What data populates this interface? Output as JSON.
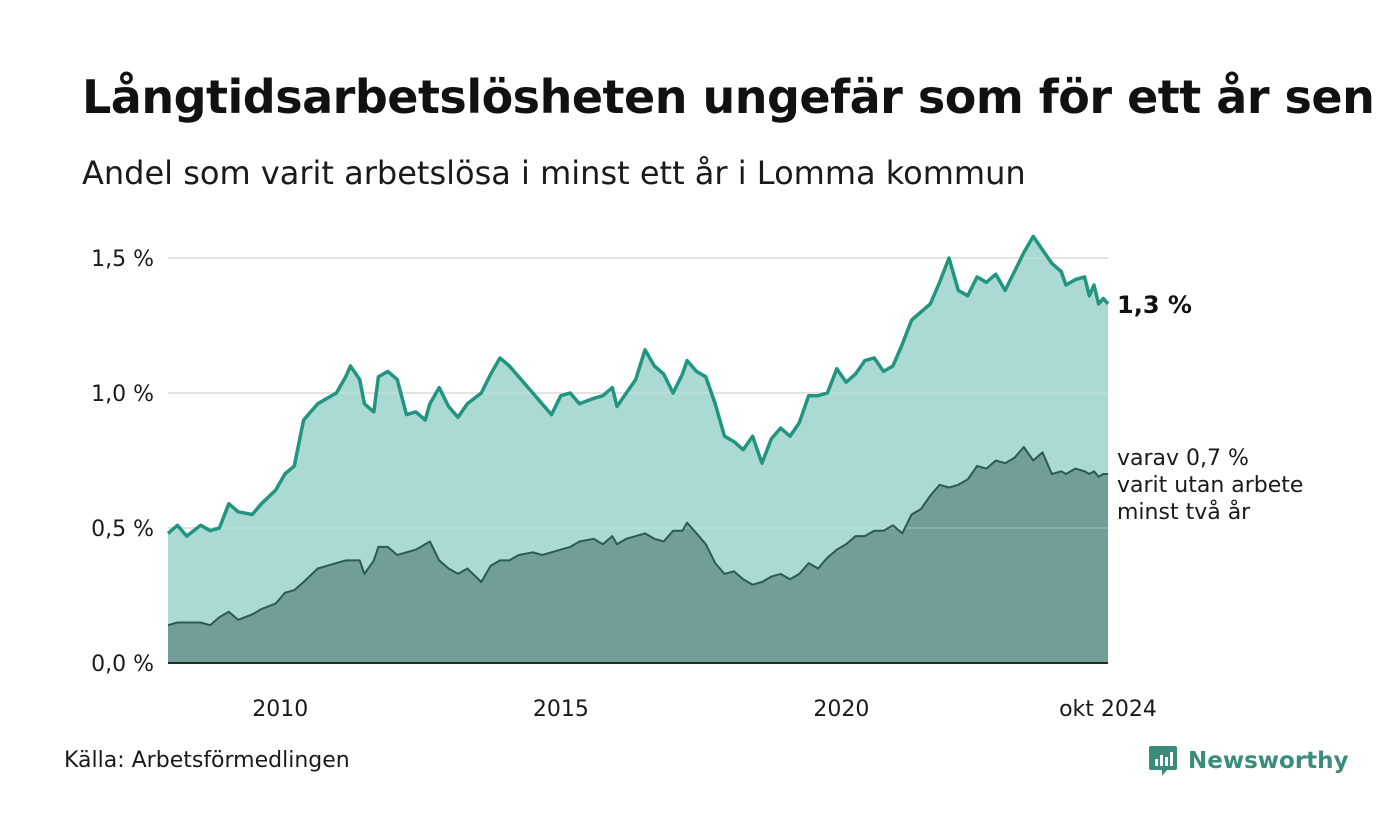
{
  "title": "Långtidsarbetslösheten ungefär som för ett år sen",
  "subtitle": "Andel som varit arbetslösa i minst ett år i Lomma kommun",
  "source": "Källa: Arbetsförmedlingen",
  "brand": {
    "name": "Newsworthy",
    "icon": "newsworthy-logo-icon"
  },
  "colors": {
    "total_line": "#21957f",
    "total_area": "#a4d6cf",
    "long_line": "#2b5c54",
    "long_area": "#719e97",
    "grid": "#dddddd",
    "brand": "#3b8c7c"
  },
  "chart_data": {
    "type": "area",
    "title": "Långtidsarbetslösheten ungefär som för ett år sen",
    "subtitle": "Andel som varit arbetslösa i minst ett år i Lomma kommun",
    "ylim": [
      0,
      1.6
    ],
    "xlim": [
      "2008-01",
      "2024-10"
    ],
    "grid": true,
    "y_ticks": [
      {
        "value": 0.0,
        "label": "0,0 %"
      },
      {
        "value": 0.5,
        "label": "0,5 %"
      },
      {
        "value": 1.0,
        "label": "1,0 %"
      },
      {
        "value": 1.5,
        "label": "1,5 %"
      }
    ],
    "x_ticks": [
      {
        "date": "2010-01",
        "label": "2010"
      },
      {
        "date": "2015-01",
        "label": "2015"
      },
      {
        "date": "2020-01",
        "label": "2020"
      },
      {
        "date": "2024-10",
        "label": "okt 2024"
      }
    ],
    "annotations": {
      "total_label": "1,3 %",
      "long_label_lines": [
        "varav 0,7 %",
        "varit utan arbete",
        "minst två år"
      ]
    },
    "series": [
      {
        "key": "total",
        "points": [
          [
            "2008-01",
            0.48
          ],
          [
            "2008-03",
            0.51
          ],
          [
            "2008-05",
            0.47
          ],
          [
            "2008-08",
            0.51
          ],
          [
            "2008-10",
            0.49
          ],
          [
            "2008-12",
            0.5
          ],
          [
            "2009-02",
            0.59
          ],
          [
            "2009-04",
            0.56
          ],
          [
            "2009-07",
            0.55
          ],
          [
            "2009-09",
            0.59
          ],
          [
            "2009-12",
            0.64
          ],
          [
            "2010-02",
            0.7
          ],
          [
            "2010-04",
            0.73
          ],
          [
            "2010-06",
            0.9
          ],
          [
            "2010-09",
            0.96
          ],
          [
            "2010-11",
            0.98
          ],
          [
            "2011-01",
            1.0
          ],
          [
            "2011-03",
            1.06
          ],
          [
            "2011-04",
            1.1
          ],
          [
            "2011-06",
            1.05
          ],
          [
            "2011-07",
            0.96
          ],
          [
            "2011-09",
            0.93
          ],
          [
            "2011-10",
            1.06
          ],
          [
            "2011-12",
            1.08
          ],
          [
            "2012-02",
            1.05
          ],
          [
            "2012-04",
            0.92
          ],
          [
            "2012-06",
            0.93
          ],
          [
            "2012-08",
            0.9
          ],
          [
            "2012-09",
            0.96
          ],
          [
            "2012-11",
            1.02
          ],
          [
            "2013-01",
            0.95
          ],
          [
            "2013-03",
            0.91
          ],
          [
            "2013-05",
            0.96
          ],
          [
            "2013-08",
            1.0
          ],
          [
            "2013-10",
            1.07
          ],
          [
            "2013-12",
            1.13
          ],
          [
            "2014-02",
            1.1
          ],
          [
            "2014-04",
            1.06
          ],
          [
            "2014-07",
            1.0
          ],
          [
            "2014-09",
            0.96
          ],
          [
            "2014-11",
            0.92
          ],
          [
            "2015-01",
            0.99
          ],
          [
            "2015-03",
            1.0
          ],
          [
            "2015-05",
            0.96
          ],
          [
            "2015-08",
            0.98
          ],
          [
            "2015-10",
            0.99
          ],
          [
            "2015-12",
            1.02
          ],
          [
            "2016-01",
            0.95
          ],
          [
            "2016-03",
            1.0
          ],
          [
            "2016-05",
            1.05
          ],
          [
            "2016-07",
            1.16
          ],
          [
            "2016-09",
            1.1
          ],
          [
            "2016-11",
            1.07
          ],
          [
            "2017-01",
            1.0
          ],
          [
            "2017-03",
            1.07
          ],
          [
            "2017-04",
            1.12
          ],
          [
            "2017-06",
            1.08
          ],
          [
            "2017-08",
            1.06
          ],
          [
            "2017-10",
            0.96
          ],
          [
            "2017-12",
            0.84
          ],
          [
            "2018-02",
            0.82
          ],
          [
            "2018-04",
            0.79
          ],
          [
            "2018-06",
            0.84
          ],
          [
            "2018-08",
            0.74
          ],
          [
            "2018-10",
            0.83
          ],
          [
            "2018-12",
            0.87
          ],
          [
            "2019-02",
            0.84
          ],
          [
            "2019-04",
            0.89
          ],
          [
            "2019-06",
            0.99
          ],
          [
            "2019-08",
            0.99
          ],
          [
            "2019-10",
            1.0
          ],
          [
            "2019-12",
            1.09
          ],
          [
            "2020-02",
            1.04
          ],
          [
            "2020-04",
            1.07
          ],
          [
            "2020-06",
            1.12
          ],
          [
            "2020-08",
            1.13
          ],
          [
            "2020-10",
            1.08
          ],
          [
            "2020-12",
            1.1
          ],
          [
            "2021-02",
            1.18
          ],
          [
            "2021-04",
            1.27
          ],
          [
            "2021-06",
            1.3
          ],
          [
            "2021-08",
            1.33
          ],
          [
            "2021-10",
            1.41
          ],
          [
            "2021-12",
            1.5
          ],
          [
            "2022-02",
            1.38
          ],
          [
            "2022-04",
            1.36
          ],
          [
            "2022-06",
            1.43
          ],
          [
            "2022-08",
            1.41
          ],
          [
            "2022-10",
            1.44
          ],
          [
            "2022-12",
            1.38
          ],
          [
            "2023-02",
            1.45
          ],
          [
            "2023-04",
            1.52
          ],
          [
            "2023-06",
            1.58
          ],
          [
            "2023-08",
            1.53
          ],
          [
            "2023-10",
            1.48
          ],
          [
            "2023-12",
            1.45
          ],
          [
            "2024-01",
            1.4
          ],
          [
            "2024-03",
            1.42
          ],
          [
            "2024-05",
            1.43
          ],
          [
            "2024-06",
            1.36
          ],
          [
            "2024-07",
            1.4
          ],
          [
            "2024-08",
            1.33
          ],
          [
            "2024-09",
            1.35
          ],
          [
            "2024-10",
            1.33
          ]
        ]
      },
      {
        "key": "long",
        "points": [
          [
            "2008-01",
            0.14
          ],
          [
            "2008-03",
            0.15
          ],
          [
            "2008-05",
            0.15
          ],
          [
            "2008-08",
            0.15
          ],
          [
            "2008-10",
            0.14
          ],
          [
            "2008-12",
            0.17
          ],
          [
            "2009-02",
            0.19
          ],
          [
            "2009-04",
            0.16
          ],
          [
            "2009-07",
            0.18
          ],
          [
            "2009-09",
            0.2
          ],
          [
            "2009-12",
            0.22
          ],
          [
            "2010-02",
            0.26
          ],
          [
            "2010-04",
            0.27
          ],
          [
            "2010-06",
            0.3
          ],
          [
            "2010-09",
            0.35
          ],
          [
            "2010-11",
            0.36
          ],
          [
            "2011-01",
            0.37
          ],
          [
            "2011-03",
            0.38
          ],
          [
            "2011-04",
            0.38
          ],
          [
            "2011-06",
            0.38
          ],
          [
            "2011-07",
            0.33
          ],
          [
            "2011-09",
            0.38
          ],
          [
            "2011-10",
            0.43
          ],
          [
            "2011-12",
            0.43
          ],
          [
            "2012-02",
            0.4
          ],
          [
            "2012-04",
            0.41
          ],
          [
            "2012-06",
            0.42
          ],
          [
            "2012-08",
            0.44
          ],
          [
            "2012-09",
            0.45
          ],
          [
            "2012-11",
            0.38
          ],
          [
            "2013-01",
            0.35
          ],
          [
            "2013-03",
            0.33
          ],
          [
            "2013-05",
            0.35
          ],
          [
            "2013-08",
            0.3
          ],
          [
            "2013-10",
            0.36
          ],
          [
            "2013-12",
            0.38
          ],
          [
            "2014-02",
            0.38
          ],
          [
            "2014-04",
            0.4
          ],
          [
            "2014-07",
            0.41
          ],
          [
            "2014-09",
            0.4
          ],
          [
            "2014-11",
            0.41
          ],
          [
            "2015-01",
            0.42
          ],
          [
            "2015-03",
            0.43
          ],
          [
            "2015-05",
            0.45
          ],
          [
            "2015-08",
            0.46
          ],
          [
            "2015-10",
            0.44
          ],
          [
            "2015-12",
            0.47
          ],
          [
            "2016-01",
            0.44
          ],
          [
            "2016-03",
            0.46
          ],
          [
            "2016-05",
            0.47
          ],
          [
            "2016-07",
            0.48
          ],
          [
            "2016-09",
            0.46
          ],
          [
            "2016-11",
            0.45
          ],
          [
            "2017-01",
            0.49
          ],
          [
            "2017-03",
            0.49
          ],
          [
            "2017-04",
            0.52
          ],
          [
            "2017-06",
            0.48
          ],
          [
            "2017-08",
            0.44
          ],
          [
            "2017-10",
            0.37
          ],
          [
            "2017-12",
            0.33
          ],
          [
            "2018-02",
            0.34
          ],
          [
            "2018-04",
            0.31
          ],
          [
            "2018-06",
            0.29
          ],
          [
            "2018-08",
            0.3
          ],
          [
            "2018-10",
            0.32
          ],
          [
            "2018-12",
            0.33
          ],
          [
            "2019-02",
            0.31
          ],
          [
            "2019-04",
            0.33
          ],
          [
            "2019-06",
            0.37
          ],
          [
            "2019-08",
            0.35
          ],
          [
            "2019-10",
            0.39
          ],
          [
            "2019-12",
            0.42
          ],
          [
            "2020-02",
            0.44
          ],
          [
            "2020-04",
            0.47
          ],
          [
            "2020-06",
            0.47
          ],
          [
            "2020-08",
            0.49
          ],
          [
            "2020-10",
            0.49
          ],
          [
            "2020-12",
            0.51
          ],
          [
            "2021-02",
            0.48
          ],
          [
            "2021-04",
            0.55
          ],
          [
            "2021-06",
            0.57
          ],
          [
            "2021-08",
            0.62
          ],
          [
            "2021-10",
            0.66
          ],
          [
            "2021-12",
            0.65
          ],
          [
            "2022-02",
            0.66
          ],
          [
            "2022-04",
            0.68
          ],
          [
            "2022-06",
            0.73
          ],
          [
            "2022-08",
            0.72
          ],
          [
            "2022-10",
            0.75
          ],
          [
            "2022-12",
            0.74
          ],
          [
            "2023-02",
            0.76
          ],
          [
            "2023-04",
            0.8
          ],
          [
            "2023-06",
            0.75
          ],
          [
            "2023-08",
            0.78
          ],
          [
            "2023-10",
            0.7
          ],
          [
            "2023-12",
            0.71
          ],
          [
            "2024-01",
            0.7
          ],
          [
            "2024-03",
            0.72
          ],
          [
            "2024-05",
            0.71
          ],
          [
            "2024-06",
            0.7
          ],
          [
            "2024-07",
            0.71
          ],
          [
            "2024-08",
            0.69
          ],
          [
            "2024-09",
            0.7
          ],
          [
            "2024-10",
            0.7
          ]
        ]
      }
    ]
  }
}
